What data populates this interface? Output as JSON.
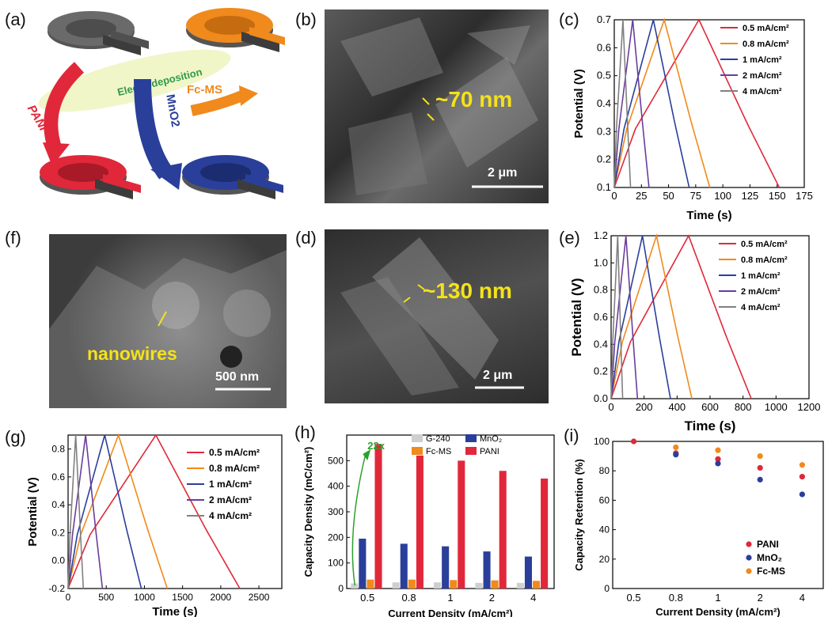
{
  "panel_labels": {
    "a": "(a)",
    "b": "(b)",
    "c": "(c)",
    "d": "(d)",
    "e": "(e)",
    "f": "(f)",
    "g": "(g)",
    "h": "(h)",
    "i": "(i)"
  },
  "schematic": {
    "center_label": "Electrodeposition",
    "arrow_labels": [
      "PANI",
      "MnO2",
      "Fc-MS"
    ],
    "colors": {
      "base": "#4a4a4a",
      "pani": "#e0283a",
      "mno2": "#2a3f9a",
      "fcms": "#f08a1c",
      "ellipse": "#f1f6c9",
      "center_text": "#2f9a46"
    }
  },
  "sem_images": [
    {
      "panel": "b",
      "annotation": "~70 nm",
      "scale_bar": "2 μm"
    },
    {
      "panel": "d",
      "annotation": "~130 nm",
      "scale_bar": "2 μm"
    },
    {
      "panel": "f",
      "annotation": "nanowires",
      "scale_bar": "500 nm"
    }
  ],
  "chart_data": [
    {
      "panel": "c",
      "type": "line",
      "xlabel": "Time (s)",
      "ylabel": "Potential (V)",
      "xlim": [
        0,
        175
      ],
      "ylim": [
        0.1,
        0.7
      ],
      "xticks": [
        0,
        25,
        50,
        75,
        100,
        125,
        150,
        175
      ],
      "yticks": [
        0.1,
        0.2,
        0.3,
        0.4,
        0.5,
        0.6,
        0.7
      ],
      "legend": "top-right",
      "series": [
        {
          "name": "0.5 mA/cm²",
          "color": "#e0283a",
          "charge_end": 78,
          "discharge_end": 152,
          "vmin": 0.1,
          "vmax": 0.7
        },
        {
          "name": "0.8 mA/cm²",
          "color": "#f08a1c",
          "charge_end": 46,
          "discharge_end": 88,
          "vmin": 0.1,
          "vmax": 0.7
        },
        {
          "name": "1 mA/cm²",
          "color": "#2a3f9a",
          "charge_end": 36,
          "discharge_end": 69,
          "vmin": 0.1,
          "vmax": 0.7
        },
        {
          "name": "2 mA/cm²",
          "color": "#6a3d9a",
          "charge_end": 17,
          "discharge_end": 32,
          "vmin": 0.1,
          "vmax": 0.7
        },
        {
          "name": "4 mA/cm²",
          "color": "#808080",
          "charge_end": 8,
          "discharge_end": 15,
          "vmin": 0.1,
          "vmax": 0.7
        }
      ]
    },
    {
      "panel": "e",
      "type": "line",
      "xlabel": "Time (s)",
      "ylabel": "Potential (V)",
      "xlim": [
        0,
        1200
      ],
      "ylim": [
        0,
        1.2
      ],
      "xticks": [
        0,
        200,
        400,
        600,
        800,
        1000,
        1200
      ],
      "yticks": [
        0.0,
        0.2,
        0.4,
        0.6,
        0.8,
        1.0,
        1.2
      ],
      "legend": "top-right",
      "series": [
        {
          "name": "0.5 mA/cm²",
          "color": "#e0283a",
          "charge_end": 470,
          "discharge_end": 850,
          "vmin": 0,
          "vmax": 1.2
        },
        {
          "name": "0.8 mA/cm²",
          "color": "#f08a1c",
          "charge_end": 275,
          "discharge_end": 490,
          "vmin": 0,
          "vmax": 1.2
        },
        {
          "name": "1 mA/cm²",
          "color": "#2a3f9a",
          "charge_end": 190,
          "discharge_end": 360,
          "vmin": 0,
          "vmax": 1.2
        },
        {
          "name": "2 mA/cm²",
          "color": "#6a3d9a",
          "charge_end": 90,
          "discharge_end": 160,
          "vmin": 0,
          "vmax": 1.2
        },
        {
          "name": "4 mA/cm²",
          "color": "#808080",
          "charge_end": 40,
          "discharge_end": 70,
          "vmin": 0,
          "vmax": 1.2
        }
      ]
    },
    {
      "panel": "g",
      "type": "line",
      "xlabel": "Time (s)",
      "ylabel": "Potential (V)",
      "xlim": [
        0,
        2800
      ],
      "ylim": [
        -0.2,
        0.9
      ],
      "xticks": [
        0,
        500,
        1000,
        1500,
        2000,
        2500
      ],
      "yticks": [
        -0.2,
        0.0,
        0.2,
        0.4,
        0.6,
        0.8
      ],
      "legend": "right",
      "series": [
        {
          "name": "0.5 mA/cm²",
          "color": "#e0283a",
          "charge_end": 1150,
          "discharge_end": 2250,
          "vmin": -0.2,
          "vmax": 0.9
        },
        {
          "name": "0.8 mA/cm²",
          "color": "#f08a1c",
          "charge_end": 660,
          "discharge_end": 1300,
          "vmin": -0.2,
          "vmax": 0.9
        },
        {
          "name": "1 mA/cm²",
          "color": "#2a3f9a",
          "charge_end": 480,
          "discharge_end": 960,
          "vmin": -0.2,
          "vmax": 0.9
        },
        {
          "name": "2 mA/cm²",
          "color": "#6a3d9a",
          "charge_end": 230,
          "discharge_end": 450,
          "vmin": -0.2,
          "vmax": 0.9
        },
        {
          "name": "4 mA/cm²",
          "color": "#808080",
          "charge_end": 100,
          "discharge_end": 200,
          "vmin": -0.2,
          "vmax": 0.9
        }
      ]
    },
    {
      "panel": "h",
      "type": "bar",
      "xlabel": "Current Density (mA/cm²)",
      "ylabel": "Capacity Density (mC/cm²)",
      "categories": [
        "0.5",
        "0.8",
        "1",
        "2",
        "4"
      ],
      "ylim": [
        0,
        600
      ],
      "yticks": [
        0,
        100,
        200,
        300,
        400,
        500
      ],
      "legend": "top",
      "annotation": "22x",
      "annotation_color": "#2ca02c",
      "series": [
        {
          "name": "G-240",
          "color": "#cfcfcf",
          "values": [
            20,
            24,
            24,
            22,
            22
          ]
        },
        {
          "name": "MnO₂",
          "color": "#2a3f9a",
          "values": [
            195,
            175,
            165,
            145,
            125
          ]
        },
        {
          "name": "Fc-MS",
          "color": "#f08a1c",
          "values": [
            35,
            35,
            33,
            32,
            30
          ]
        },
        {
          "name": "PANI",
          "color": "#e0283a",
          "values": [
            565,
            520,
            500,
            460,
            430
          ]
        }
      ]
    },
    {
      "panel": "i",
      "type": "scatter",
      "xlabel": "Current Density (mA/cm²)",
      "ylabel": "Capacity Retention (%)",
      "categories": [
        "0.5",
        "0.8",
        "1",
        "2",
        "4"
      ],
      "ylim": [
        0,
        100
      ],
      "yticks": [
        0,
        20,
        40,
        60,
        80,
        100
      ],
      "legend": "bottom-right",
      "series": [
        {
          "name": "PANI",
          "color": "#e0283a",
          "values": [
            100,
            92,
            88,
            82,
            76
          ]
        },
        {
          "name": "MnO₂",
          "color": "#2a3f9a",
          "values": [
            100,
            91,
            85,
            74,
            64
          ]
        },
        {
          "name": "Fc-MS",
          "color": "#f08a1c",
          "values": [
            100,
            96,
            94,
            90,
            84
          ]
        }
      ]
    }
  ]
}
